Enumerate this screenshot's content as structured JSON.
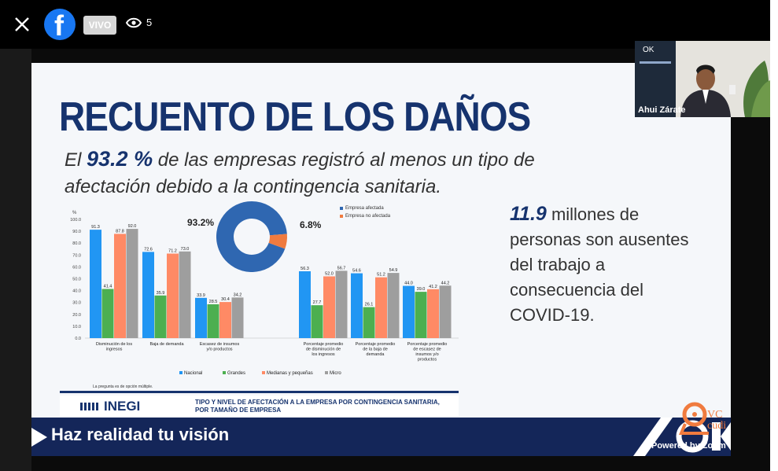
{
  "live": {
    "badge": "VIVO",
    "viewer_count": "5"
  },
  "slide": {
    "title": "RECUENTO DE LOS DAÑOS",
    "stat_prefix": "El",
    "stat_percent": "93.2 %",
    "stat_line1_rest": "de las empresas registró al menos un tipo de",
    "stat_line2": "afectación debido a la contingencia sanitaria.",
    "side_number": "11.9",
    "side_line1_rest": "millones de",
    "side_line2": "personas son ausentes",
    "side_line3": "del trabajo a",
    "side_line4": "consecuencia del",
    "side_line5": "COVID-19.",
    "donut_affected_label": "93.2%",
    "donut_not_affected_label": "6.8%",
    "footer_note": "La pregunta es de opción múltiple.",
    "inegi_logo_text": "INEGI",
    "inegi_caption": "TIPO Y NIVEL DE AFECTACIÓN A LA EMPRESA POR CONTINGENCIA SANITARIA, POR TAMAÑO DE EMPRESA"
  },
  "banner": {
    "text": "Haz realidad tu visión"
  },
  "video": {
    "name": "Ahui Zárate"
  },
  "watermark": {
    "vc": "VC",
    "cudi": "cudi",
    "powered": "Powered by Zoom"
  },
  "chart_data": [
    {
      "type": "bar",
      "title": "",
      "ylabel": "%",
      "ylim": [
        0,
        100
      ],
      "yticks": [
        "100.0",
        "90.0",
        "80.0",
        "70.0",
        "60.0",
        "50.0",
        "40.0",
        "30.0",
        "20.0",
        "10.0",
        "0.0"
      ],
      "categories": [
        "Disminución de los ingresos",
        "Baja de demanda",
        "Escasez de insumos y/o productos",
        "Porcentaje promedio de disminución de los ingresos",
        "Porcentaje promedio de la baja de demanda",
        "Porcentaje promedio de escasez de insumos y/o productos"
      ],
      "series": [
        {
          "name": "Nacional",
          "color": "#2196f3",
          "values": [
            91.3,
            72.6,
            33.9,
            56.3,
            54.6,
            44.0
          ]
        },
        {
          "name": "Grandes",
          "color": "#4caf50",
          "values": [
            41.4,
            35.9,
            28.5,
            27.7,
            26.1,
            39.0
          ]
        },
        {
          "name": "Medianas y pequeñas",
          "color": "#ff8a65",
          "values": [
            87.8,
            71.2,
            30.4,
            52.0,
            51.2,
            41.2
          ]
        },
        {
          "name": "Micro",
          "color": "#9e9e9e",
          "values": [
            92.0,
            73.0,
            34.2,
            56.7,
            54.9,
            44.2
          ]
        }
      ]
    },
    {
      "type": "pie",
      "categories": [
        "Empresa afectada",
        "Empresa no afectada"
      ],
      "values": [
        93.2,
        6.8
      ],
      "colors": [
        "#2f67b1",
        "#f07b3f"
      ]
    }
  ]
}
